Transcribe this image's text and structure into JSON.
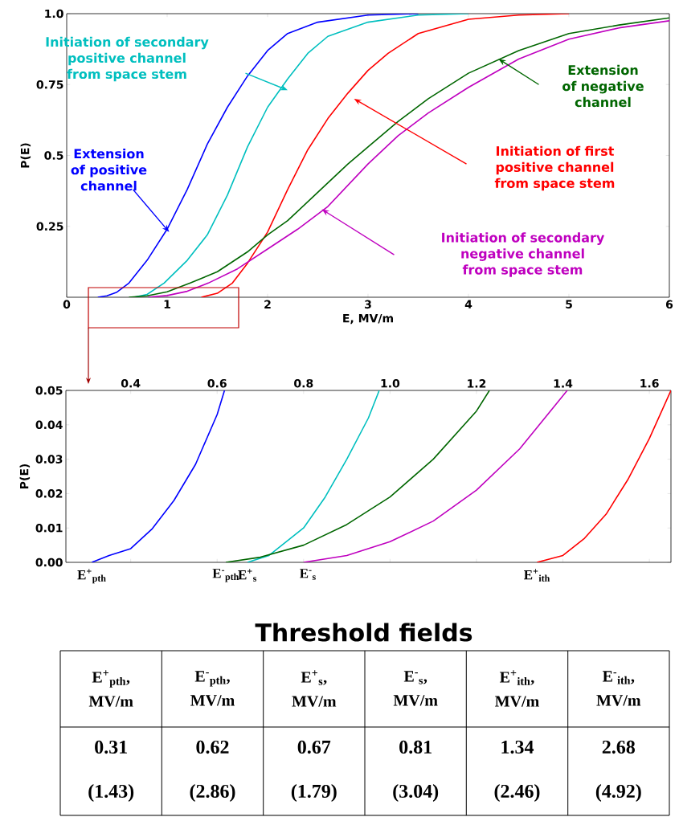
{
  "chart_data": [
    {
      "type": "line",
      "xlabel": "E, MV/m",
      "ylabel": "P(E)",
      "xlim": [
        0,
        6
      ],
      "xticks": [
        0,
        1,
        2,
        3,
        4,
        5,
        6
      ],
      "ylim": [
        0,
        1
      ],
      "yticks": [
        {
          "value": 0.25,
          "label": "0.25"
        },
        0.5,
        {
          "value": 0.75,
          "label": "0.75"
        },
        {
          "value": 1,
          "label": "1.0"
        }
      ],
      "series": [
        {
          "name": "Extension of positive channel",
          "color": "#0000ff",
          "x": [
            0.31,
            0.4,
            0.5,
            0.62,
            0.8,
            1.0,
            1.2,
            1.4,
            1.6,
            1.8,
            2.0,
            2.2,
            2.5,
            3.0,
            3.5
          ],
          "values": [
            0,
            0.005,
            0.018,
            0.05,
            0.13,
            0.24,
            0.38,
            0.54,
            0.67,
            0.78,
            0.87,
            0.93,
            0.97,
            0.995,
            1
          ]
        },
        {
          "name": "Initiation of secondary positive channel from space stem",
          "color": "#00bfbf",
          "x": [
            0.67,
            0.8,
            0.97,
            1.2,
            1.4,
            1.6,
            1.8,
            2.0,
            2.2,
            2.4,
            2.6,
            3.0,
            3.5,
            4.0
          ],
          "values": [
            0,
            0.01,
            0.05,
            0.13,
            0.22,
            0.36,
            0.53,
            0.67,
            0.77,
            0.86,
            0.92,
            0.97,
            0.995,
            1
          ]
        },
        {
          "name": "Initiation of first positive channel from space stem",
          "color": "#ff0000",
          "x": [
            1.34,
            1.5,
            1.65,
            1.8,
            2.0,
            2.2,
            2.4,
            2.6,
            2.8,
            3.0,
            3.2,
            3.5,
            4.0,
            4.5,
            5.0
          ],
          "values": [
            0,
            0.014,
            0.05,
            0.12,
            0.23,
            0.38,
            0.52,
            0.63,
            0.72,
            0.8,
            0.86,
            0.93,
            0.98,
            0.995,
            1
          ]
        },
        {
          "name": "Extension of negative channel",
          "color": "#006600",
          "x": [
            0.62,
            0.8,
            1.0,
            1.23,
            1.5,
            1.8,
            2.0,
            2.2,
            2.5,
            2.8,
            3.0,
            3.3,
            3.6,
            4.0,
            4.5,
            5.0,
            5.5,
            6.0
          ],
          "values": [
            0,
            0.005,
            0.019,
            0.05,
            0.09,
            0.16,
            0.22,
            0.27,
            0.37,
            0.47,
            0.53,
            0.62,
            0.7,
            0.79,
            0.87,
            0.93,
            0.96,
            0.985
          ]
        },
        {
          "name": "Initiation of secondary negative channel from space stem",
          "color": "#bf00bf",
          "x": [
            0.81,
            1.0,
            1.2,
            1.41,
            1.7,
            2.0,
            2.3,
            2.6,
            3.0,
            3.3,
            3.6,
            4.0,
            4.5,
            5.0,
            5.5,
            6.0
          ],
          "values": [
            0,
            0.006,
            0.021,
            0.05,
            0.1,
            0.17,
            0.24,
            0.32,
            0.47,
            0.57,
            0.65,
            0.74,
            0.84,
            0.91,
            0.95,
            0.975
          ]
        }
      ]
    },
    {
      "type": "line",
      "ylabel": "P(E)",
      "xlim": [
        0.25,
        1.65
      ],
      "xticks": [
        {
          "value": 0.4,
          "label": "0.4"
        },
        {
          "value": 0.6,
          "label": "0.6"
        },
        {
          "value": 0.8,
          "label": "0.8"
        },
        {
          "value": 1.0,
          "label": "1.0"
        },
        {
          "value": 1.2,
          "label": "1.2"
        },
        {
          "value": 1.4,
          "label": "1.4"
        },
        {
          "value": 1.6,
          "label": "1.6"
        }
      ],
      "annotations": [
        {
          "text": "E$^{+}$$_{pth}$",
          "x": 0.31,
          "y": 0
        },
        {
          "text": "E$^{-}$$_{pth}$",
          "x": 0.62,
          "y": 0
        },
        {
          "text": "E$^{+}$$_{s}$",
          "x": 0.67,
          "y": 0
        },
        {
          "text": "E$^{-}$$_{s}$",
          "x": 0.81,
          "y": 0
        },
        {
          "text": "E$^{+}$$_{ith}$",
          "x": 1.34,
          "y": 0
        }
      ],
      "ylim": [
        0,
        0.05
      ],
      "yticks": [
        {
          "value": 0,
          "label": "0.00"
        },
        {
          "value": 0.01,
          "label": "0.01"
        },
        {
          "value": 0.02,
          "label": "0.02"
        },
        {
          "value": 0.03,
          "label": "0.03"
        },
        {
          "value": 0.04,
          "label": "0.04"
        },
        {
          "value": 0.05,
          "label": "0.05"
        }
      ],
      "series": [
        {
          "color": "#0000ff",
          "x": [
            0.31,
            0.35,
            0.4,
            0.45,
            0.5,
            0.55,
            0.6,
            0.617
          ],
          "values": [
            0,
            0.002,
            0.004,
            0.0098,
            0.018,
            0.0285,
            0.043,
            0.05
          ]
        },
        {
          "color": "#00bfbf",
          "x": [
            0.67,
            0.72,
            0.8,
            0.85,
            0.9,
            0.95,
            0.975
          ],
          "values": [
            0,
            0.002,
            0.01,
            0.019,
            0.03,
            0.042,
            0.05
          ]
        },
        {
          "color": "#ff0000",
          "x": [
            1.34,
            1.4,
            1.45,
            1.5,
            1.55,
            1.6,
            1.65
          ],
          "values": [
            0,
            0.002,
            0.007,
            0.014,
            0.024,
            0.036,
            0.05
          ]
        },
        {
          "color": "#006600",
          "x": [
            0.62,
            0.7,
            0.8,
            0.9,
            1.0,
            1.1,
            1.2,
            1.23
          ],
          "values": [
            0,
            0.0015,
            0.005,
            0.011,
            0.019,
            0.03,
            0.044,
            0.05
          ]
        },
        {
          "color": "#bf00bf",
          "x": [
            0.8,
            0.9,
            1.0,
            1.1,
            1.2,
            1.3,
            1.41
          ],
          "values": [
            0,
            0.002,
            0.006,
            0.012,
            0.021,
            0.033,
            0.05
          ]
        }
      ]
    },
    {
      "type": "other",
      "title": "Threshold fields",
      "annotations": [
        "E$^{+}$$_{pth}$, MV/m",
        "E$^{-}$$_{pth}$, MV/m",
        "E$^{+}$$_{s}$, MV/m",
        "E$^{-}$$_{s}$, MV/m",
        "E$^{+}$$_{ith}$, MV/m",
        "E$^{-}$$_{ith}$, MV/m",
        "0.31",
        "0.62",
        "0.67",
        "0.81",
        "1.34",
        "2.68",
        "(1.43)",
        "(2.86)",
        "(1.79)",
        "(3.04)",
        "(2.46)",
        "(4.92)"
      ]
    }
  ]
}
